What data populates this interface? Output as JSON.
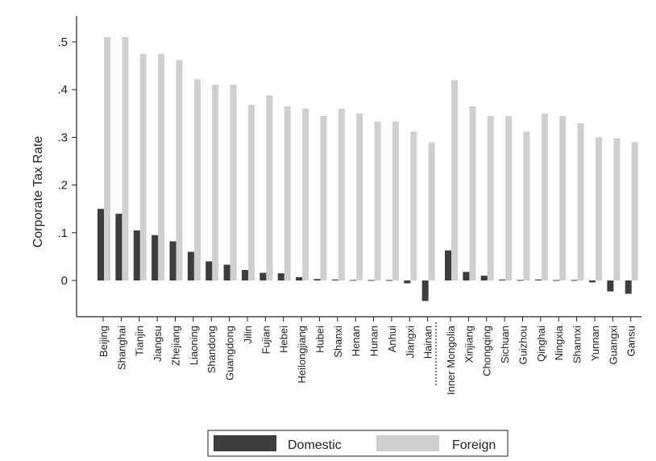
{
  "chart_data": {
    "type": "bar",
    "ylabel": "Corporate Tax Rate",
    "xlabel": "",
    "ylim": [
      -0.1,
      0.55
    ],
    "yticks": [
      0,
      0.1,
      0.2,
      0.3,
      0.4,
      0.5
    ],
    "ytick_labels": [
      "0",
      ".1",
      ".2",
      ".3",
      ".4",
      ".5"
    ],
    "grid": false,
    "legend_position": "bottom",
    "groups": [
      {
        "categories": [
          "Beijing",
          "Shanghai",
          "Tianjin",
          "Jiangsu",
          "Zhejiang",
          "Liaoning",
          "Shandong",
          "Guangdong",
          "Jilin",
          "Fujian",
          "Hebei",
          "Heilongjiang",
          "Hubei",
          "Shanxi",
          "Henan",
          "Hunan",
          "Anhui",
          "Jiangxi",
          "Hainan"
        ],
        "domestic": [
          0.15,
          0.14,
          0.105,
          0.095,
          0.082,
          0.06,
          0.04,
          0.033,
          0.022,
          0.016,
          0.015,
          0.007,
          0.003,
          0.002,
          0.001,
          0.001,
          0.001,
          -0.006,
          -0.043
        ],
        "foreign": [
          0.51,
          0.51,
          0.475,
          0.475,
          0.462,
          0.422,
          0.41,
          0.41,
          0.368,
          0.388,
          0.365,
          0.36,
          0.345,
          0.36,
          0.35,
          0.333,
          0.333,
          0.312,
          0.29
        ]
      },
      {
        "categories": [
          "Inner Mongolia",
          "Xinjiang",
          "Chongqing",
          "Sichuan",
          "Guizhou",
          "Qinghai",
          "Ningxia",
          "Shannxi",
          "Yunnan",
          "Guangxi",
          "Gansu"
        ],
        "domestic": [
          0.063,
          0.018,
          0.01,
          0.002,
          0.001,
          0.002,
          0.001,
          0.001,
          -0.004,
          -0.023,
          -0.028
        ],
        "foreign": [
          0.42,
          0.365,
          0.345,
          0.345,
          0.312,
          0.35,
          0.345,
          0.33,
          0.3,
          0.298,
          0.29
        ]
      }
    ],
    "series": [
      {
        "name": "Domestic",
        "color": "#3d3d3d"
      },
      {
        "name": "Foreign",
        "color": "#cfcfcf"
      }
    ]
  }
}
